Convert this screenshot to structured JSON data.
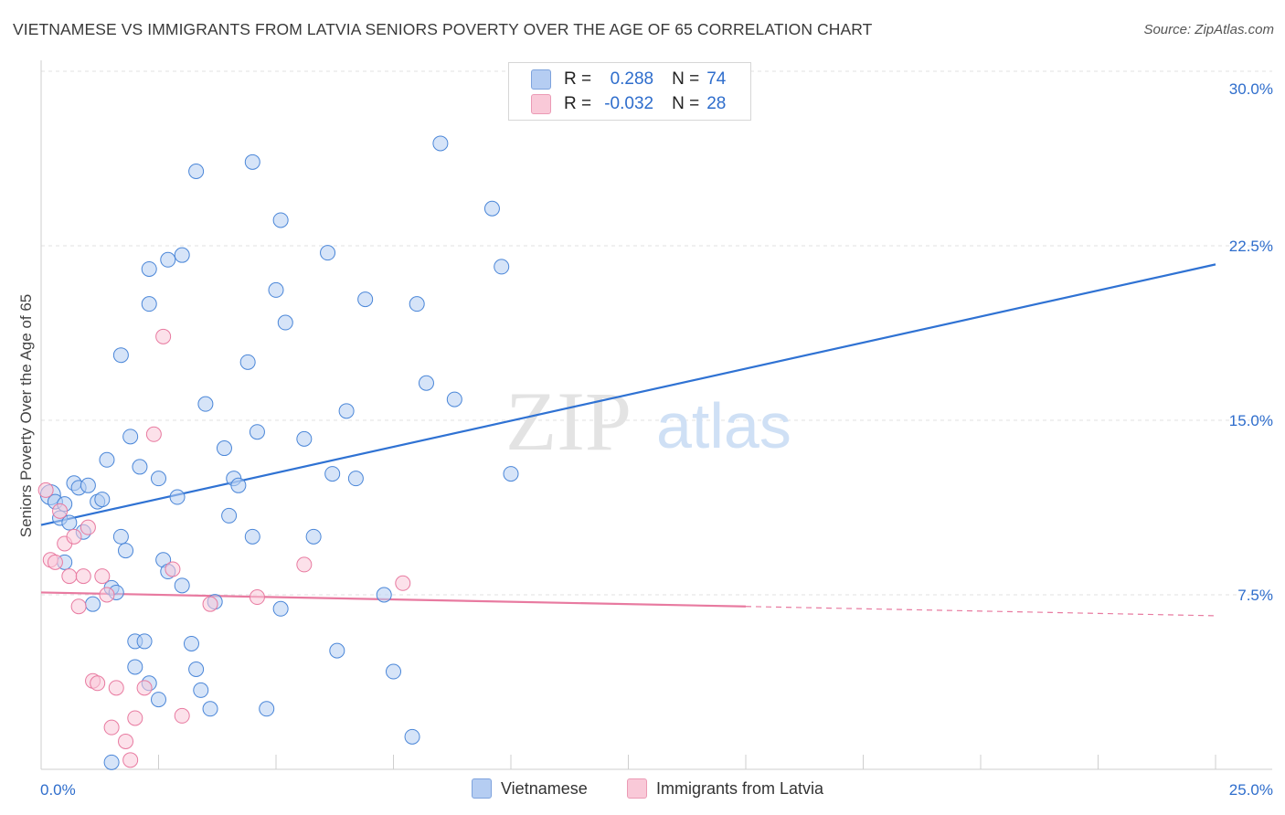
{
  "header": {
    "title": "VIETNAMESE VS IMMIGRANTS FROM LATVIA SENIORS POVERTY OVER THE AGE OF 65 CORRELATION CHART",
    "source": "Source: ZipAtlas.com"
  },
  "watermark": {
    "zip": "ZIP",
    "atlas": "atlas"
  },
  "legend": {
    "r_label": "R =",
    "n_label": "N =",
    "rows": [
      {
        "r": "0.288",
        "n": "74",
        "color": "#b5cdf2"
      },
      {
        "r": "-0.032",
        "n": "28",
        "color": "#f9c9d8"
      }
    ]
  },
  "bottom_legend": [
    "Vietnamese",
    "Immigrants from Latvia"
  ],
  "chart_data": {
    "type": "scatter",
    "ylabel": "Seniors Poverty Over the Age of 65",
    "xlim": [
      0,
      25
    ],
    "ylim": [
      0,
      30
    ],
    "x_tick_labels": [
      "0.0%",
      "25.0%"
    ],
    "y_ticks": [
      7.5,
      15.0,
      22.5,
      30.0
    ],
    "y_tick_labels": [
      "7.5%",
      "15.0%",
      "22.5%",
      "30.0%"
    ],
    "grid": true,
    "series": [
      {
        "name": "Vietnamese",
        "color": "#4a86d8",
        "fill": "#b5cdf2",
        "trend": {
          "x": [
            0,
            25
          ],
          "y": [
            10.5,
            21.7
          ],
          "dashed_from": null
        },
        "points": [
          [
            0.2,
            11.8
          ],
          [
            0.3,
            11.5
          ],
          [
            0.4,
            10.8
          ],
          [
            0.5,
            11.4
          ],
          [
            0.6,
            10.6
          ],
          [
            0.5,
            8.9
          ],
          [
            0.7,
            12.3
          ],
          [
            0.8,
            12.1
          ],
          [
            0.9,
            10.2
          ],
          [
            1.0,
            12.2
          ],
          [
            1.2,
            11.5
          ],
          [
            1.3,
            11.6
          ],
          [
            1.4,
            13.3
          ],
          [
            1.1,
            7.1
          ],
          [
            1.5,
            7.8
          ],
          [
            1.6,
            7.6
          ],
          [
            1.7,
            10.0
          ],
          [
            1.8,
            9.4
          ],
          [
            1.9,
            14.3
          ],
          [
            2.1,
            13.0
          ],
          [
            2.0,
            5.5
          ],
          [
            2.2,
            5.5
          ],
          [
            2.0,
            4.4
          ],
          [
            2.3,
            3.7
          ],
          [
            2.5,
            12.5
          ],
          [
            2.6,
            9.0
          ],
          [
            2.7,
            8.5
          ],
          [
            2.9,
            11.7
          ],
          [
            3.0,
            7.9
          ],
          [
            3.2,
            5.4
          ],
          [
            3.3,
            4.3
          ],
          [
            3.4,
            3.4
          ],
          [
            3.5,
            15.7
          ],
          [
            3.6,
            2.6
          ],
          [
            3.7,
            7.2
          ],
          [
            3.9,
            13.8
          ],
          [
            4.0,
            10.9
          ],
          [
            4.1,
            12.5
          ],
          [
            4.2,
            12.2
          ],
          [
            4.4,
            17.5
          ],
          [
            4.6,
            14.5
          ],
          [
            4.8,
            2.6
          ],
          [
            5.0,
            20.6
          ],
          [
            5.2,
            19.2
          ],
          [
            5.1,
            6.9
          ],
          [
            5.6,
            14.2
          ],
          [
            5.8,
            10.0
          ],
          [
            6.1,
            22.2
          ],
          [
            6.2,
            12.7
          ],
          [
            6.3,
            5.1
          ],
          [
            6.5,
            15.4
          ],
          [
            6.7,
            12.5
          ],
          [
            6.9,
            20.2
          ],
          [
            7.3,
            7.5
          ],
          [
            7.5,
            4.2
          ],
          [
            7.9,
            1.4
          ],
          [
            8.0,
            20.0
          ],
          [
            8.2,
            16.6
          ],
          [
            8.5,
            26.9
          ],
          [
            8.8,
            15.9
          ],
          [
            9.6,
            24.1
          ],
          [
            9.8,
            21.6
          ],
          [
            10.0,
            12.7
          ],
          [
            1.7,
            17.8
          ],
          [
            2.3,
            21.5
          ],
          [
            2.3,
            20.0
          ],
          [
            2.7,
            21.9
          ],
          [
            3.0,
            22.1
          ],
          [
            3.3,
            25.7
          ],
          [
            4.5,
            26.1
          ],
          [
            5.1,
            23.6
          ],
          [
            1.5,
            0.3
          ],
          [
            2.5,
            3.0
          ],
          [
            4.5,
            10.0
          ]
        ]
      },
      {
        "name": "Immigrants from Latvia",
        "color": "#e87aa0",
        "fill": "#f9c9d8",
        "trend": {
          "x": [
            0,
            25
          ],
          "y": [
            7.6,
            6.6
          ],
          "dashed_from": 15.0
        },
        "points": [
          [
            0.1,
            12.0
          ],
          [
            0.2,
            9.0
          ],
          [
            0.3,
            8.9
          ],
          [
            0.4,
            11.1
          ],
          [
            0.5,
            9.7
          ],
          [
            0.6,
            8.3
          ],
          [
            0.7,
            10.0
          ],
          [
            0.8,
            7.0
          ],
          [
            0.9,
            8.3
          ],
          [
            1.0,
            10.4
          ],
          [
            1.1,
            3.8
          ],
          [
            1.2,
            3.7
          ],
          [
            1.3,
            8.3
          ],
          [
            1.4,
            7.5
          ],
          [
            1.5,
            1.8
          ],
          [
            1.6,
            3.5
          ],
          [
            1.8,
            1.2
          ],
          [
            1.9,
            0.4
          ],
          [
            2.0,
            2.2
          ],
          [
            2.2,
            3.5
          ],
          [
            2.4,
            14.4
          ],
          [
            2.6,
            18.6
          ],
          [
            2.8,
            8.6
          ],
          [
            3.0,
            2.3
          ],
          [
            3.6,
            7.1
          ],
          [
            5.6,
            8.8
          ],
          [
            7.7,
            8.0
          ],
          [
            4.6,
            7.4
          ]
        ]
      }
    ]
  }
}
